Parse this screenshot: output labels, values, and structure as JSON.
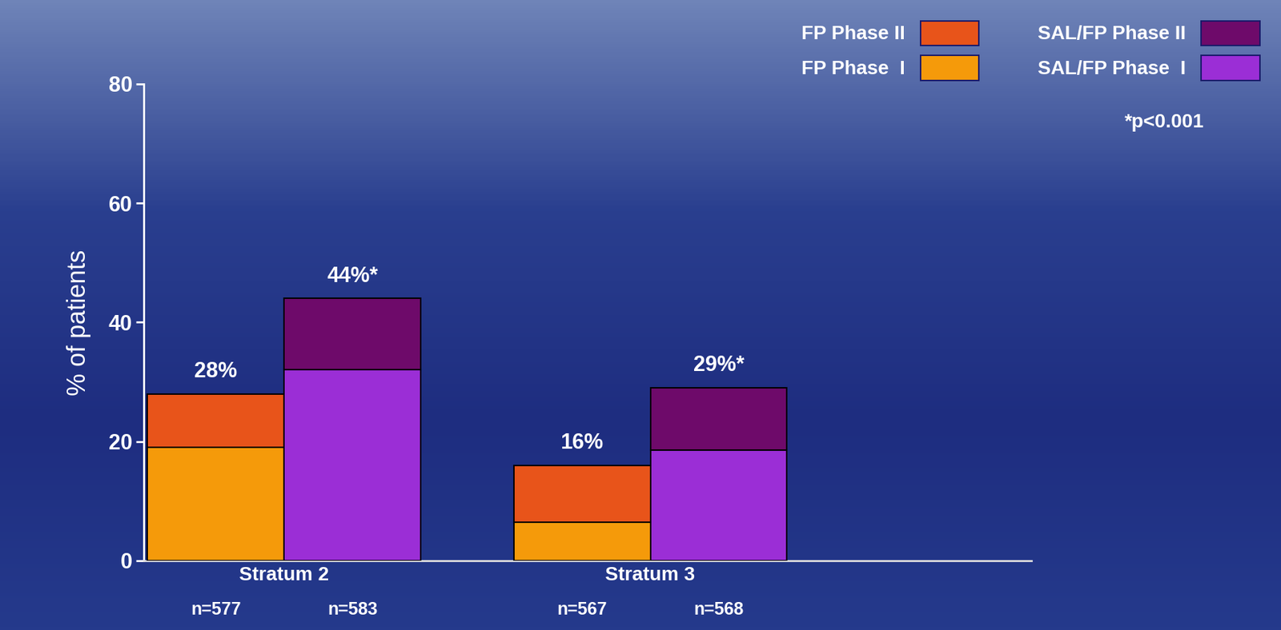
{
  "chart_data": {
    "type": "bar",
    "stacked": true,
    "y_label": "% of patients",
    "note": "*p<0.001",
    "categories": [
      "Stratum 2",
      "Stratum 3"
    ],
    "ylim": [
      0,
      80
    ],
    "yticks": [
      0,
      20,
      40,
      60,
      80
    ],
    "legend": "upper right",
    "bars": [
      {
        "name": "FP",
        "total_labels": [
          "28%",
          "16%"
        ],
        "n_labels": [
          "n=577",
          "n=567"
        ]
      },
      {
        "name": "SAL/FP",
        "total_labels": [
          "44%*",
          "29%*"
        ],
        "n_labels": [
          "n=583",
          "n=568"
        ]
      }
    ],
    "series": [
      {
        "name": "FP Phase  I",
        "bar": "FP",
        "color": "#f59a0a",
        "values": [
          19,
          6.5
        ]
      },
      {
        "name": "FP Phase II",
        "bar": "FP",
        "color": "#e8541a",
        "values": [
          9,
          9.5
        ]
      },
      {
        "name": "SAL/FP Phase  I",
        "bar": "SAL/FP",
        "color": "#9b2ed6",
        "values": [
          32,
          18.5
        ]
      },
      {
        "name": "SAL/FP Phase II",
        "bar": "SAL/FP",
        "color": "#6e0a6a",
        "values": [
          12,
          10.5
        ]
      }
    ]
  }
}
